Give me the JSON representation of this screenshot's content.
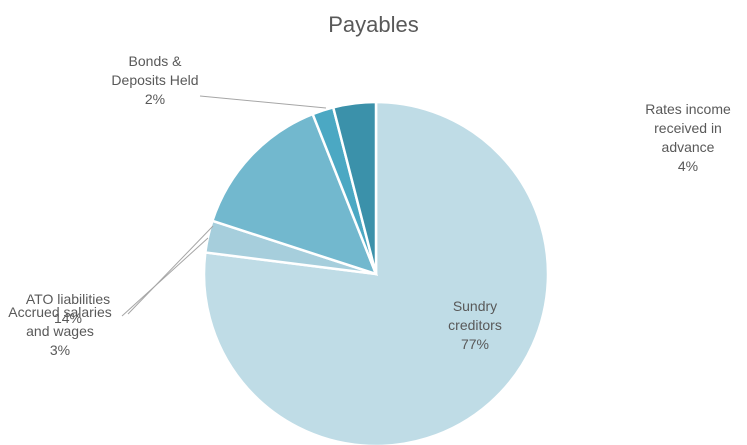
{
  "chart_data": {
    "type": "pie",
    "title": "Payables",
    "categories": [
      "Sundry creditors",
      "Accrued salaries and wages",
      "ATO liabilities",
      "Bonds & Deposits Held",
      "Rates income received in advance"
    ],
    "values": [
      77,
      3,
      14,
      2,
      4
    ],
    "value_labels": [
      "77%",
      "3%",
      "14%",
      "2%",
      "4%"
    ],
    "colors": [
      "#bfdce6",
      "#a6cedc",
      "#72b8ce",
      "#4ba8c3",
      "#3b91aa"
    ]
  }
}
